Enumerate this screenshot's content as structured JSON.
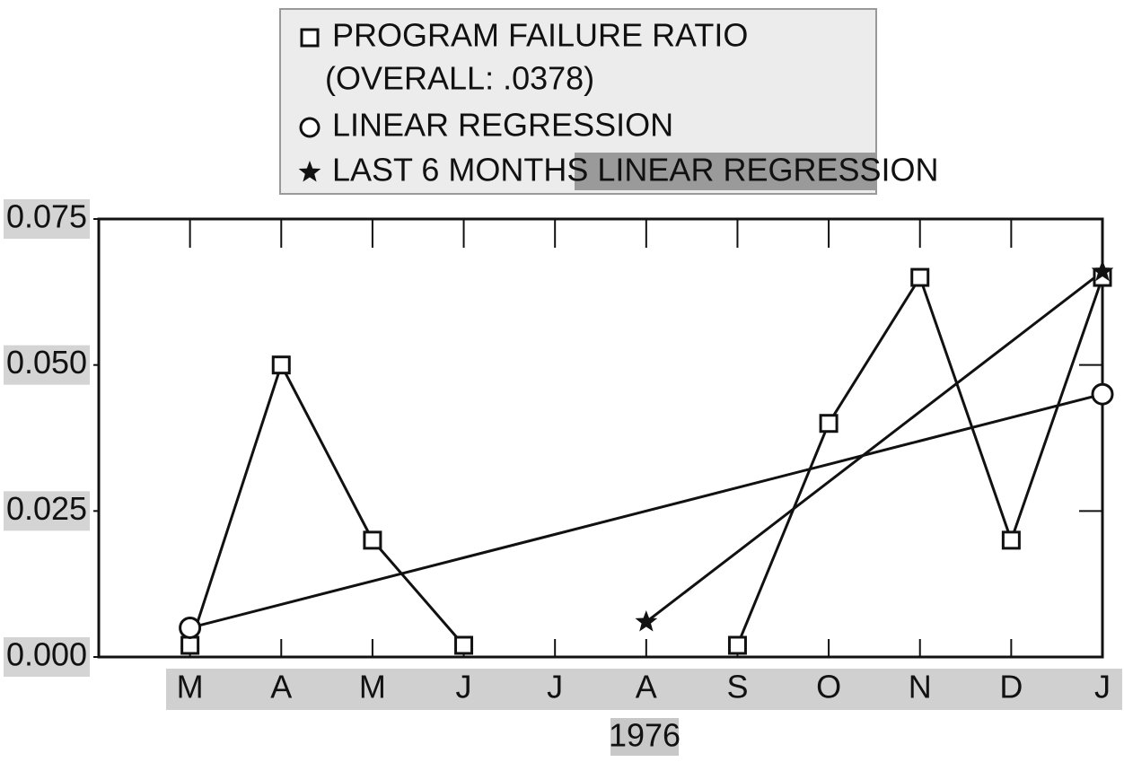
{
  "chart_data": {
    "type": "line",
    "categories": [
      "M",
      "A",
      "M",
      "J",
      "J",
      "A",
      "S",
      "O",
      "N",
      "D",
      "J"
    ],
    "x_label": "1976",
    "legend_note": "(OVERALL: .0378)",
    "series": [
      {
        "name": "PROGRAM FAILURE RATIO",
        "color": "#111111",
        "marker": "square",
        "marker_at": "all",
        "values": [
          0.002,
          0.05,
          0.02,
          0.002,
          null,
          null,
          0.002,
          0.04,
          0.065,
          0.02,
          0.065
        ]
      },
      {
        "name": "LINEAR REGRESSION",
        "color": "#111111",
        "marker": "circle",
        "marker_at": "ends",
        "values": [
          0.005,
          0.009,
          0.013,
          0.017,
          0.021,
          0.025,
          0.029,
          0.033,
          0.037,
          0.041,
          0.045
        ]
      },
      {
        "name": "LAST 6 MONTHS LINEAR REGRESSION",
        "color": "#111111",
        "marker": "star",
        "marker_at": "ends",
        "values": [
          null,
          null,
          null,
          null,
          null,
          0.006,
          0.018,
          0.03,
          0.042,
          0.054,
          0.066
        ]
      }
    ],
    "ylim": [
      0,
      0.075
    ],
    "yticks": [
      {
        "value": 0,
        "label": "0.000"
      },
      {
        "value": 0.025,
        "label": "0.025"
      },
      {
        "value": 0.05,
        "label": "0.050"
      },
      {
        "value": 0.075,
        "label": "0.075"
      }
    ],
    "grid": false
  }
}
